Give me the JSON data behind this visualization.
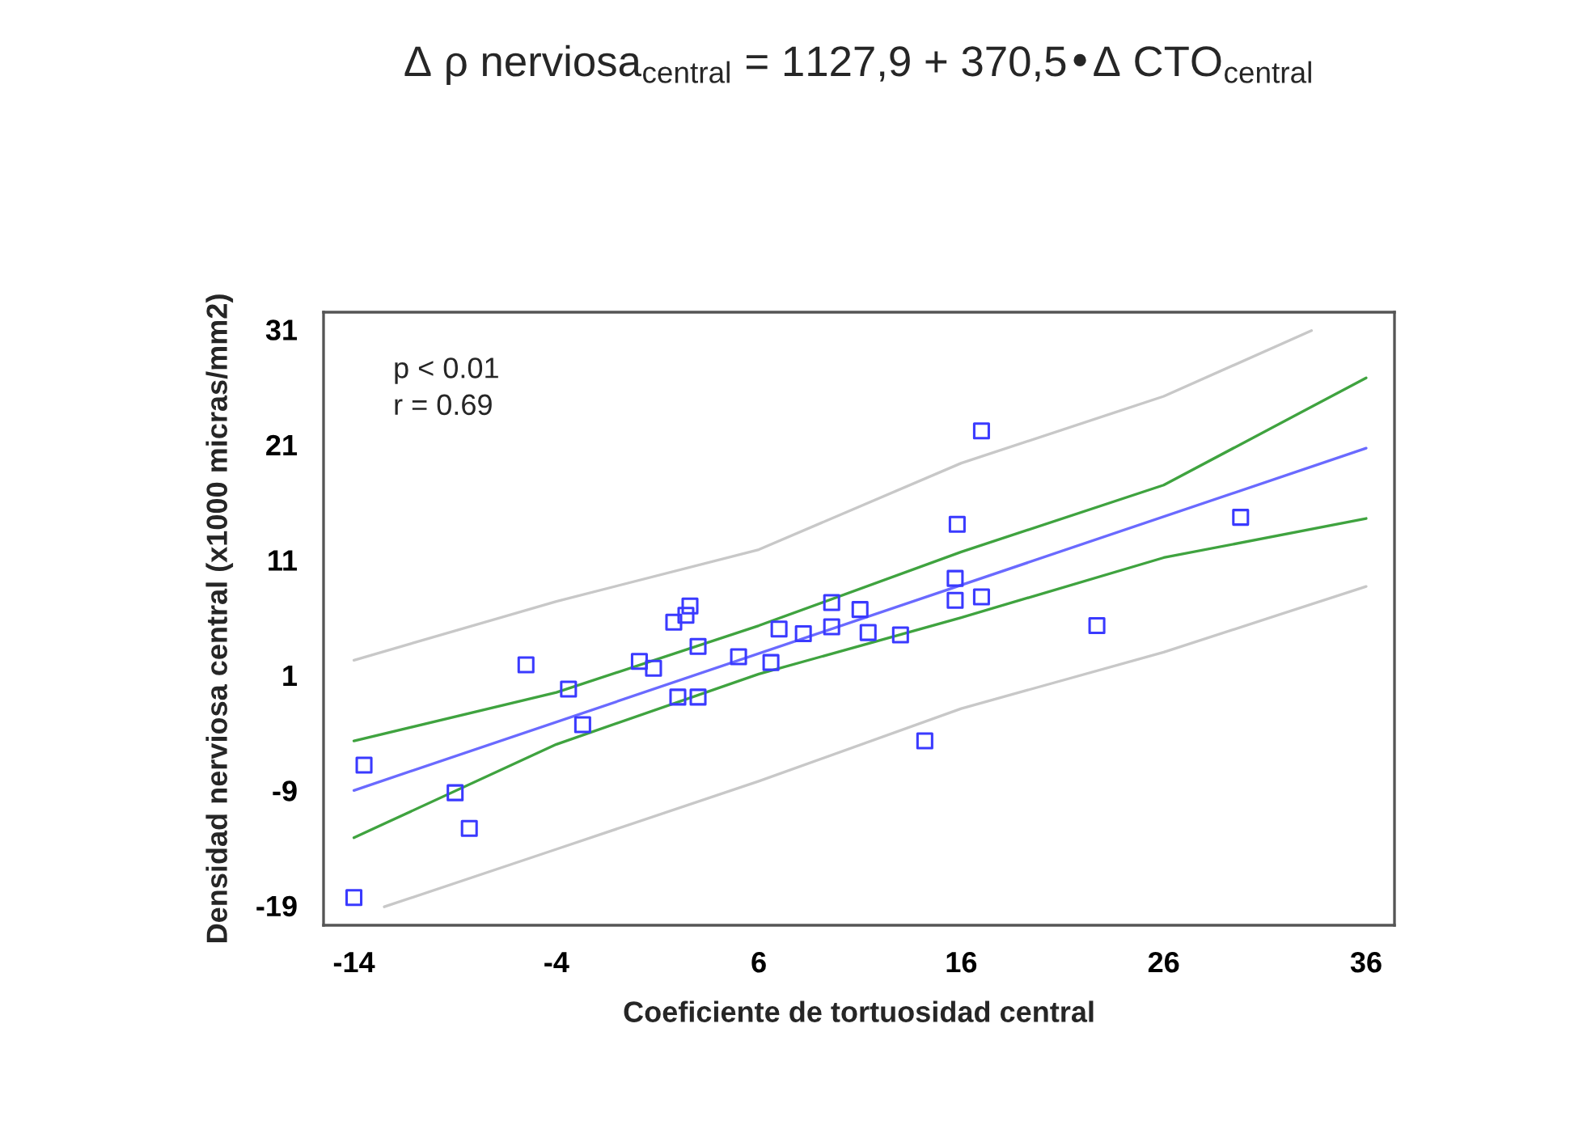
{
  "chart_data": {
    "type": "scatter",
    "title": "Δ ρ nerviosa$_{central}$ = 1127,9 + 370,5•Δ CTO$_{central}$",
    "xlabel": "Coeficiente de tortuosidad central",
    "ylabel": "Densidad nerviosa central (x1000 micras/mm2)",
    "annotations": [
      "p < 0.01",
      "r = 0.69"
    ],
    "xlim": [
      -15.5,
      37.4
    ],
    "ylim": [
      -20.7,
      32.5
    ],
    "xticks": [
      -14,
      -4,
      6,
      16,
      26,
      36
    ],
    "yticks": [
      -19,
      -9,
      1,
      11,
      21,
      31
    ],
    "grid": false,
    "legend": false,
    "marker": "square",
    "series": [
      {
        "color": "#3a3aff",
        "x": [
          -14,
          -13.5,
          -9.0,
          -8.3,
          -5.5,
          -3.4,
          -2.7,
          0.1,
          0.8,
          1.8,
          2.0,
          2.4,
          2.6,
          3.0,
          3.0,
          5.0,
          6.6,
          7.0,
          8.2,
          9.6,
          9.6,
          11.0,
          11.4,
          13.0,
          14.2,
          15.8,
          15.7,
          15.7,
          17.0,
          17.0,
          22.7,
          29.8
        ],
        "values": [
          -18.3,
          -6.8,
          -9.2,
          -12.3,
          1.9,
          -0.2,
          -3.3,
          2.2,
          1.6,
          5.6,
          -0.9,
          6.2,
          7.0,
          3.5,
          -0.9,
          2.6,
          2.1,
          5.0,
          4.6,
          7.3,
          5.2,
          6.7,
          4.7,
          4.5,
          -4.7,
          14.1,
          9.4,
          7.5,
          22.2,
          7.8,
          5.3,
          14.7
        ]
      },
      {
        "type": "line",
        "color": "#6a6aff",
        "marker": "none",
        "x": [
          -14,
          36
        ],
        "values": [
          -9.0,
          20.7
        ]
      },
      {
        "type": "line",
        "color": "#3fa33f",
        "marker": "none",
        "x": [
          -14,
          -4,
          6,
          16,
          26,
          36
        ],
        "values": [
          -4.7,
          -0.5,
          5.3,
          11.7,
          17.5,
          26.8
        ]
      },
      {
        "type": "line",
        "color": "#3fa33f",
        "marker": "none",
        "x": [
          -14,
          -4,
          6,
          16,
          26,
          36
        ],
        "values": [
          -13.1,
          -5.0,
          1.1,
          6.0,
          11.2,
          14.6
        ]
      },
      {
        "type": "line",
        "color": "#c8c8c8",
        "marker": "none",
        "x": [
          -14,
          -4,
          6,
          16,
          26,
          33.3
        ],
        "values": [
          2.3,
          7.4,
          11.9,
          19.4,
          25.2,
          30.9
        ]
      },
      {
        "type": "line",
        "color": "#c8c8c8",
        "marker": "none",
        "x": [
          -12.5,
          -4,
          6,
          16,
          26,
          36
        ],
        "values": [
          -19.1,
          -14.1,
          -8.2,
          -1.9,
          3.0,
          8.7
        ]
      }
    ]
  }
}
